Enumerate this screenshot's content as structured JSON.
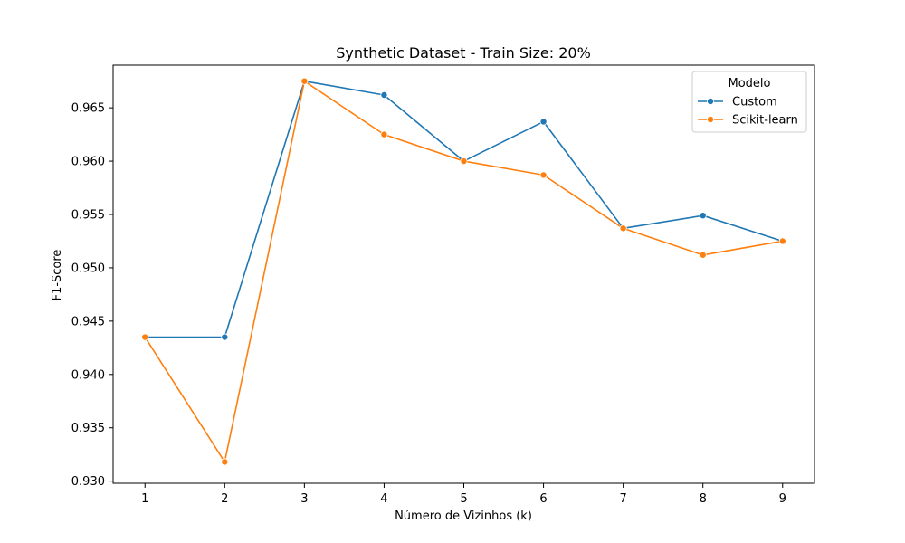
{
  "chart_data": {
    "type": "line",
    "title": "Synthetic Dataset - Train Size: 20%",
    "xlabel": "Número de Vizinhos (k)",
    "ylabel": "F1-Score",
    "x": [
      1,
      2,
      3,
      4,
      5,
      6,
      7,
      8,
      9
    ],
    "xlim": [
      0.6,
      9.4
    ],
    "ylim": [
      0.9298,
      0.969
    ],
    "xticks": [
      "1",
      "2",
      "3",
      "4",
      "5",
      "6",
      "7",
      "8",
      "9"
    ],
    "yticks": [
      "0.930",
      "0.935",
      "0.940",
      "0.945",
      "0.950",
      "0.955",
      "0.960",
      "0.965"
    ],
    "ytick_values": [
      0.93,
      0.935,
      0.94,
      0.945,
      0.95,
      0.955,
      0.96,
      0.965
    ],
    "grid": false,
    "legend": {
      "title": "Modelo",
      "placement": "top-right"
    },
    "series": [
      {
        "name": "Custom",
        "color": "#1f77b4",
        "values": [
          0.9435,
          0.9435,
          0.9675,
          0.9662,
          0.96,
          0.9637,
          0.9537,
          0.9549,
          0.9525
        ]
      },
      {
        "name": "Scikit-learn",
        "color": "#ff7f0e",
        "values": [
          0.9435,
          0.9318,
          0.9675,
          0.9625,
          0.96,
          0.9587,
          0.9537,
          0.9512,
          0.9525
        ]
      }
    ]
  }
}
